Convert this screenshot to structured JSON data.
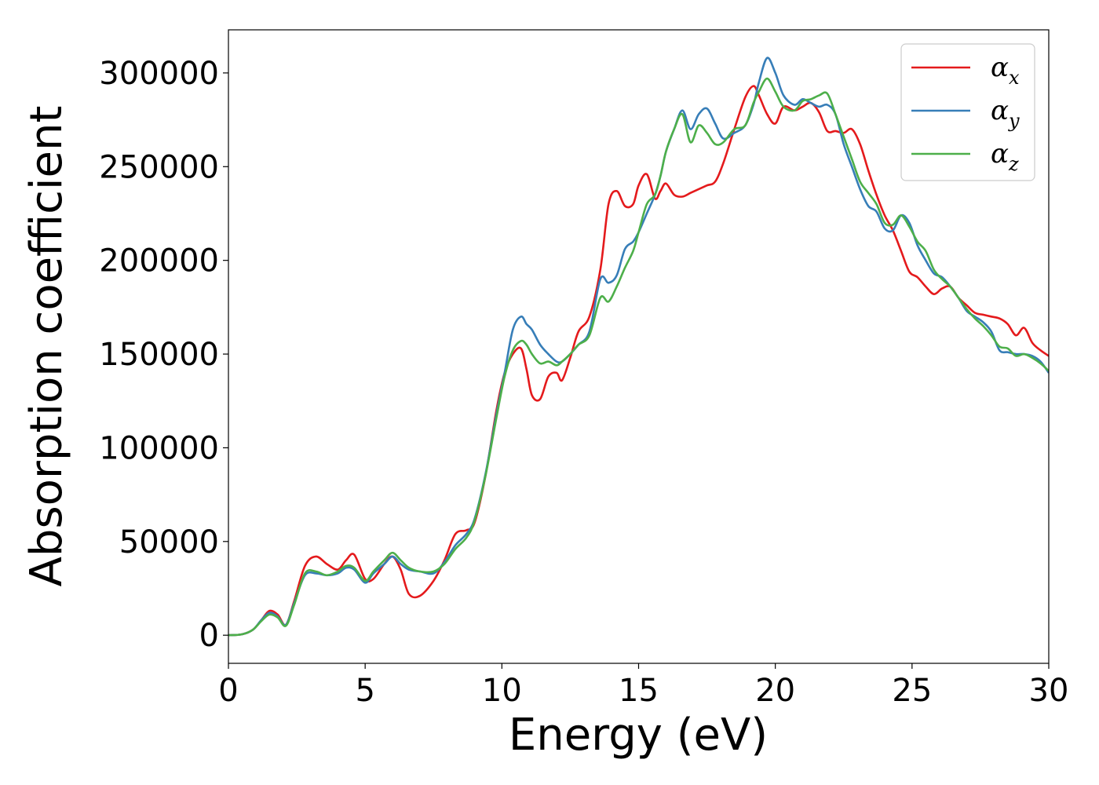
{
  "chart_data": {
    "type": "line",
    "title": "",
    "xlabel": "Energy (eV)",
    "ylabel": "Absorption coefficient",
    "xlim": [
      0,
      30
    ],
    "ylim": [
      -15000,
      323000
    ],
    "xticks": [
      0,
      5,
      10,
      15,
      20,
      25,
      30
    ],
    "xtick_labels": [
      "0",
      "5",
      "10",
      "15",
      "20",
      "25",
      "30"
    ],
    "yticks": [
      0,
      50000,
      100000,
      150000,
      200000,
      250000,
      300000
    ],
    "ytick_labels": [
      "0",
      "50000",
      "100000",
      "150000",
      "200000",
      "250000",
      "300000"
    ],
    "grid": false,
    "legend_position": "top-right",
    "series": [
      {
        "name": "αx",
        "label_main": "α",
        "label_sub": "x",
        "color": "#e41a1c",
        "x": [
          0,
          0.5,
          0.9,
          1.2,
          1.5,
          1.8,
          2.1,
          2.4,
          2.8,
          3.2,
          3.6,
          4.0,
          4.3,
          4.6,
          5.0,
          5.3,
          5.7,
          6.0,
          6.3,
          6.6,
          7.0,
          7.5,
          7.9,
          8.3,
          8.7,
          9.0,
          9.4,
          9.8,
          10.1,
          10.4,
          10.7,
          10.9,
          11.1,
          11.4,
          11.7,
          12.0,
          12.2,
          12.5,
          12.8,
          13.2,
          13.6,
          13.9,
          14.2,
          14.5,
          14.8,
          15.0,
          15.3,
          15.6,
          15.8,
          16.0,
          16.3,
          16.6,
          16.9,
          17.2,
          17.5,
          17.8,
          18.1,
          18.5,
          18.9,
          19.2,
          19.4,
          19.7,
          20.0,
          20.3,
          20.7,
          21.0,
          21.3,
          21.6,
          21.9,
          22.2,
          22.5,
          22.8,
          23.1,
          23.4,
          23.7,
          24.0,
          24.3,
          24.6,
          24.9,
          25.2,
          25.5,
          25.8,
          26.1,
          26.4,
          26.7,
          27.0,
          27.3,
          27.6,
          27.9,
          28.2,
          28.5,
          28.8,
          29.1,
          29.4,
          29.7,
          30.0
        ],
        "y": [
          0,
          500,
          3000,
          8000,
          13000,
          11000,
          5500,
          18000,
          37000,
          42000,
          38000,
          35000,
          40000,
          43000,
          30000,
          30000,
          38000,
          42000,
          35000,
          22000,
          21000,
          29000,
          40000,
          54000,
          56000,
          60000,
          85000,
          120000,
          140000,
          150000,
          153000,
          142000,
          128000,
          126000,
          138000,
          140000,
          136000,
          148000,
          162000,
          170000,
          195000,
          230000,
          237000,
          229000,
          230000,
          240000,
          246000,
          233000,
          237000,
          241000,
          235000,
          234000,
          236000,
          238000,
          240000,
          242000,
          252000,
          270000,
          287000,
          293000,
          288000,
          278000,
          273000,
          282000,
          280000,
          282000,
          284000,
          279000,
          269000,
          269000,
          268000,
          270000,
          262000,
          248000,
          235000,
          224000,
          216000,
          205000,
          194000,
          191000,
          186000,
          182000,
          185000,
          186000,
          180000,
          176000,
          172000,
          171000,
          170000,
          169000,
          166000,
          160000,
          164000,
          156000,
          152000,
          149000
        ]
      },
      {
        "name": "αy",
        "label_main": "α",
        "label_sub": "y",
        "color": "#377eb8",
        "x": [
          0,
          0.5,
          0.9,
          1.2,
          1.5,
          1.8,
          2.1,
          2.4,
          2.8,
          3.2,
          3.6,
          4.0,
          4.3,
          4.6,
          5.0,
          5.3,
          5.7,
          6.0,
          6.3,
          6.6,
          7.0,
          7.5,
          7.9,
          8.3,
          8.7,
          9.0,
          9.4,
          9.8,
          10.1,
          10.4,
          10.7,
          10.9,
          11.1,
          11.4,
          11.7,
          12.0,
          12.2,
          12.5,
          12.8,
          13.2,
          13.6,
          13.9,
          14.2,
          14.5,
          14.8,
          15.0,
          15.3,
          15.6,
          15.8,
          16.0,
          16.3,
          16.6,
          16.9,
          17.2,
          17.5,
          17.8,
          18.1,
          18.5,
          18.9,
          19.2,
          19.4,
          19.7,
          20.0,
          20.3,
          20.7,
          21.0,
          21.3,
          21.6,
          21.9,
          22.2,
          22.5,
          22.8,
          23.1,
          23.4,
          23.7,
          24.0,
          24.3,
          24.6,
          24.9,
          25.2,
          25.5,
          25.8,
          26.1,
          26.4,
          26.7,
          27.0,
          27.3,
          27.6,
          27.9,
          28.2,
          28.5,
          28.8,
          29.1,
          29.4,
          29.7,
          30.0
        ],
        "y": [
          0,
          500,
          3000,
          8000,
          12000,
          10000,
          5500,
          17000,
          32000,
          33000,
          32000,
          33000,
          36000,
          35000,
          28000,
          33000,
          38000,
          42000,
          38000,
          35000,
          34000,
          33000,
          39000,
          48000,
          54000,
          62000,
          86000,
          118000,
          140000,
          163000,
          170000,
          166000,
          163000,
          155000,
          150000,
          146000,
          146000,
          150000,
          155000,
          162000,
          190000,
          188000,
          192000,
          206000,
          210000,
          215000,
          225000,
          235000,
          245000,
          258000,
          270000,
          280000,
          270000,
          278000,
          281000,
          273000,
          265000,
          268000,
          272000,
          283000,
          295000,
          308000,
          300000,
          288000,
          283000,
          286000,
          284000,
          282000,
          283000,
          278000,
          262000,
          250000,
          238000,
          229000,
          226000,
          217000,
          216000,
          224000,
          220000,
          208000,
          200000,
          193000,
          191000,
          186000,
          180000,
          173000,
          170000,
          167000,
          162000,
          152000,
          151000,
          150000,
          150000,
          149000,
          146000,
          140000
        ]
      },
      {
        "name": "αz",
        "label_main": "α",
        "label_sub": "z",
        "color": "#4daf4a",
        "x": [
          0,
          0.5,
          0.9,
          1.2,
          1.5,
          1.8,
          2.1,
          2.4,
          2.8,
          3.2,
          3.6,
          4.0,
          4.3,
          4.6,
          5.0,
          5.3,
          5.7,
          6.0,
          6.3,
          6.6,
          7.0,
          7.5,
          7.9,
          8.3,
          8.7,
          9.0,
          9.4,
          9.8,
          10.1,
          10.4,
          10.7,
          10.9,
          11.1,
          11.4,
          11.7,
          12.0,
          12.2,
          12.5,
          12.8,
          13.2,
          13.6,
          13.9,
          14.2,
          14.5,
          14.8,
          15.0,
          15.3,
          15.6,
          15.8,
          16.0,
          16.3,
          16.6,
          16.9,
          17.2,
          17.5,
          17.8,
          18.1,
          18.5,
          18.9,
          19.2,
          19.4,
          19.7,
          20.0,
          20.3,
          20.7,
          21.0,
          21.3,
          21.6,
          21.9,
          22.2,
          22.5,
          22.8,
          23.1,
          23.4,
          23.7,
          24.0,
          24.3,
          24.6,
          24.9,
          25.2,
          25.5,
          25.8,
          26.1,
          26.4,
          26.7,
          27.0,
          27.3,
          27.6,
          27.9,
          28.2,
          28.5,
          28.8,
          29.1,
          29.4,
          29.7,
          30.0
        ],
        "y": [
          0,
          500,
          3000,
          7500,
          11000,
          9500,
          5000,
          16000,
          33000,
          34000,
          32000,
          34000,
          37000,
          36000,
          29000,
          34000,
          40000,
          44000,
          40000,
          36000,
          34000,
          34000,
          38000,
          46000,
          52000,
          61000,
          85000,
          116000,
          138000,
          152000,
          157000,
          155000,
          150000,
          145000,
          146000,
          144000,
          146000,
          150000,
          155000,
          160000,
          180000,
          178000,
          186000,
          196000,
          205000,
          215000,
          230000,
          235000,
          245000,
          258000,
          270000,
          278000,
          263000,
          272000,
          268000,
          262000,
          263000,
          270000,
          272000,
          284000,
          290000,
          297000,
          290000,
          282000,
          280000,
          285000,
          286000,
          288000,
          289000,
          278000,
          266000,
          254000,
          242000,
          236000,
          230000,
          220000,
          219000,
          224000,
          218000,
          210000,
          205000,
          195000,
          190000,
          186000,
          180000,
          174000,
          169000,
          165000,
          160000,
          154000,
          153000,
          149000,
          150000,
          148000,
          145000,
          141000
        ]
      }
    ]
  }
}
